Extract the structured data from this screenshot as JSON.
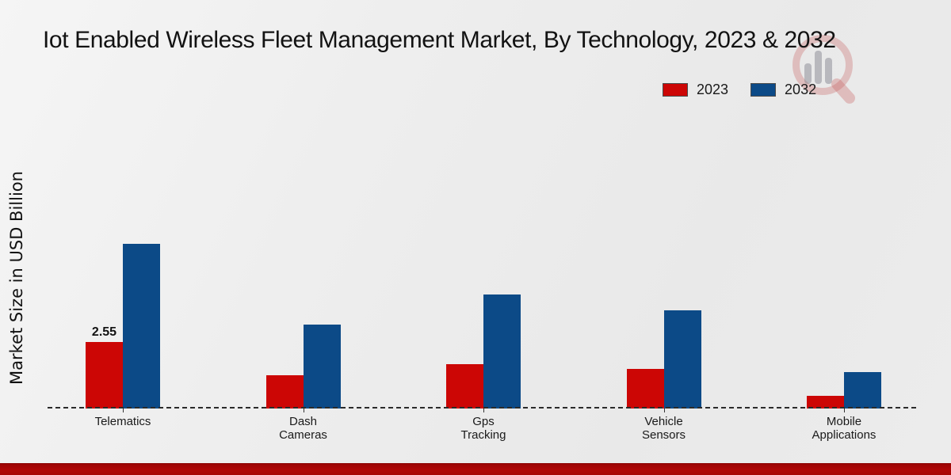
{
  "title": "Iot Enabled Wireless Fleet Management Market, By Technology, 2023 & 2032",
  "y_axis_label": "Market Size in USD Billion",
  "legend": [
    {
      "label": "2023",
      "color": "#cc0605"
    },
    {
      "label": "2032",
      "color": "#0c4a87"
    }
  ],
  "watermark_icon": "magnifier-bar-chart-logo-watermark",
  "footer": {
    "band_color": "#b00606"
  },
  "chart_data": {
    "type": "bar",
    "title": "Iot Enabled Wireless Fleet Management Market, By Technology, 2023 & 2032",
    "ylabel": "Market Size in USD Billion",
    "xlabel": "",
    "units": "USD Billion",
    "categories": [
      "Telematics",
      "Dash\nCameras",
      "Gps\nTracking",
      "Vehicle\nSensors",
      "Mobile\nApplications"
    ],
    "series": [
      {
        "name": "2023",
        "color": "#cc0605",
        "values": [
          2.55,
          1.27,
          1.7,
          1.53,
          0.5
        ]
      },
      {
        "name": "2032",
        "color": "#0c4a87",
        "values": [
          6.35,
          3.25,
          4.4,
          3.8,
          1.4
        ]
      }
    ],
    "bar_labels": [
      {
        "series_index": 0,
        "category_index": 0,
        "text": "2.55"
      }
    ],
    "ylim": [
      0,
      7.5
    ],
    "grid": false,
    "y_tick_labels_visible": false,
    "baseline_style": "dashed",
    "legend_position": "top-right"
  }
}
